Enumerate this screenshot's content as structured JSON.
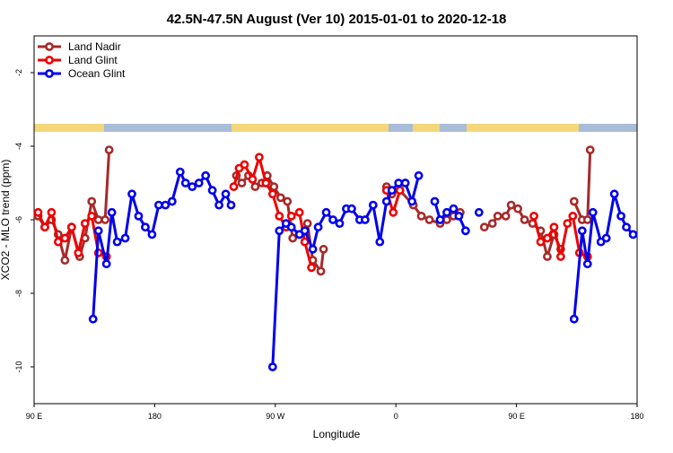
{
  "chart_data": {
    "type": "line",
    "title": "42.5N-47.5N August (Ver 10)   2015-01-01 to 2020-12-18",
    "x_label": "Longitude",
    "y_label": "XCO2 - MLO trend (ppm)",
    "xlim": [
      90,
      540
    ],
    "ylim": [
      -11,
      -1
    ],
    "xticks": [
      {
        "value": 90,
        "label": "90 E"
      },
      180,
      {
        "value": 270,
        "label": "90 W"
      },
      {
        "value": 360,
        "label": "0"
      },
      {
        "value": 450,
        "label": "90 E"
      },
      180
    ],
    "yticks": [
      -2,
      -4,
      -6,
      -8,
      -10
    ],
    "legend": "top-left",
    "series": [
      {
        "name": "Land Nadir",
        "color": "#a52a2a",
        "x": [
          93,
          98,
          103,
          108,
          113,
          118,
          124,
          128,
          133,
          138,
          143,
          146,
          null,
          241,
          245,
          250,
          255,
          260,
          264,
          269,
          274,
          279,
          283,
          288,
          294,
          298,
          304,
          306,
          null,
          353,
          357,
          363,
          373,
          379,
          385,
          393,
          398,
          403,
          408,
          null,
          426,
          432,
          436,
          442,
          446,
          451,
          456,
          462,
          468,
          473,
          478,
          483,
          null,
          493,
          499,
          503,
          505
        ],
        "values": [
          -5.9,
          -6.2,
          -6.0,
          -6.4,
          -7.1,
          -6.2,
          -7.0,
          -6.5,
          -5.5,
          -6.0,
          -6.0,
          -4.1,
          null,
          -4.8,
          -5.0,
          -4.8,
          -5.1,
          -5.0,
          -4.8,
          -5.1,
          -5.4,
          -5.5,
          -6.5,
          -6.4,
          -6.1,
          -7.1,
          -7.4,
          -6.8,
          null,
          -5.1,
          -5.3,
          -5.2,
          -5.6,
          -5.9,
          -6.0,
          -6.1,
          -6.0,
          -5.9,
          -5.8,
          null,
          -6.2,
          -6.1,
          -5.9,
          -5.9,
          -5.6,
          -5.7,
          -6.0,
          -6.1,
          -6.3,
          -7.0,
          -6.4,
          -6.8,
          null,
          -5.5,
          -6.0,
          -6.0,
          -4.1
        ]
      },
      {
        "name": "Land Glint",
        "color": "#ee0000",
        "x": [
          93,
          98,
          103,
          108,
          113,
          118,
          123,
          128,
          133,
          138,
          144,
          null,
          239,
          243,
          247,
          253,
          258,
          263,
          268,
          273,
          278,
          282,
          288,
          292,
          297,
          null,
          353,
          358,
          363,
          null,
          463,
          468,
          473,
          478,
          483,
          488,
          492,
          497,
          503
        ],
        "values": [
          -5.8,
          -6.2,
          -5.8,
          -6.6,
          -6.5,
          -6.2,
          -6.9,
          -6.1,
          -5.9,
          -6.9,
          -7.0,
          null,
          -5.1,
          -4.6,
          -4.5,
          -4.9,
          -4.3,
          -5.0,
          -5.3,
          -5.9,
          -6.2,
          -5.9,
          -5.8,
          -6.6,
          -7.3,
          null,
          -5.2,
          -5.8,
          -5.2,
          null,
          -5.9,
          -6.6,
          -6.5,
          -6.2,
          -7.0,
          -6.1,
          -5.9,
          -6.9,
          -7.0
        ]
      },
      {
        "name": "Ocean Glint",
        "color": "#0000ee",
        "x": [
          134,
          138,
          144,
          148,
          152,
          158,
          163,
          168,
          173,
          178,
          183,
          188,
          193,
          199,
          203,
          208,
          213,
          218,
          223,
          228,
          233,
          237,
          null,
          268,
          273,
          278,
          282,
          288,
          292,
          298,
          302,
          308,
          313,
          318,
          323,
          327,
          333,
          337,
          343,
          348,
          353,
          357,
          362,
          367,
          372,
          377,
          null,
          389,
          393,
          398,
          403,
          407,
          412,
          null,
          422,
          null,
          493,
          499,
          503,
          507,
          513,
          517,
          523,
          528,
          532,
          537
        ],
        "values": [
          -8.7,
          -6.3,
          -7.2,
          -5.8,
          -6.6,
          -6.5,
          -5.3,
          -5.9,
          -6.2,
          -6.4,
          -5.6,
          -5.6,
          -5.5,
          -4.7,
          -5.0,
          -5.1,
          -5.0,
          -4.8,
          -5.2,
          -5.6,
          -5.3,
          -5.6,
          null,
          -10.0,
          -6.3,
          -6.1,
          -6.2,
          -6.4,
          -6.3,
          -6.8,
          -6.2,
          -5.8,
          -6.0,
          -6.1,
          -5.7,
          -5.7,
          -6.0,
          -6.0,
          -5.6,
          -6.6,
          -5.5,
          -5.2,
          -5.0,
          -5.0,
          -5.5,
          -4.8,
          null,
          -5.5,
          -6.0,
          -5.8,
          -5.7,
          -5.9,
          -6.3,
          null,
          -5.8,
          null,
          -8.7,
          -6.3,
          -7.2,
          -5.8,
          -6.6,
          -6.5,
          -5.3,
          -5.9,
          -6.2,
          -6.4
        ]
      }
    ]
  }
}
